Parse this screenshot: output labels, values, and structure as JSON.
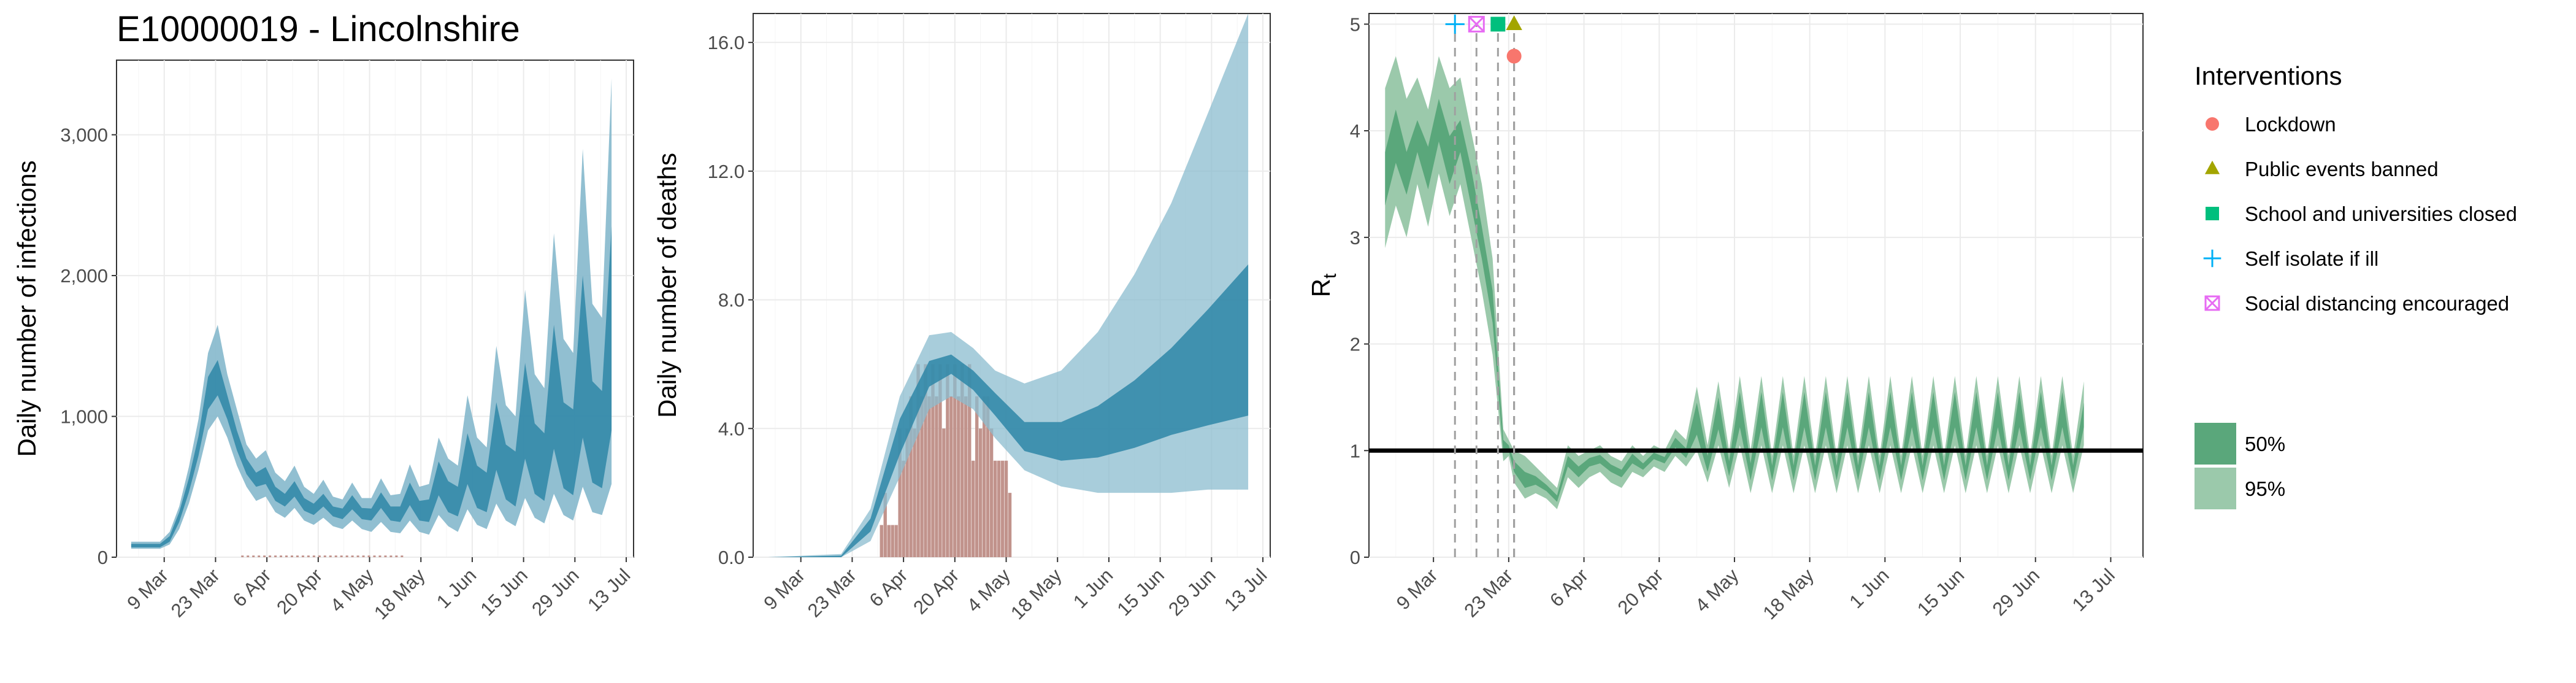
{
  "title": "E10000019 - Lincolnshire",
  "colors": {
    "band_blue_95": "#8bbccf",
    "band_blue_50": "#2e86a7",
    "bar": "#c1938c",
    "green_95": "#9bc9ab",
    "green_50": "#5aa77b",
    "lockdown": "#f8766d",
    "public_events": "#a3a500",
    "schools": "#00bf7d",
    "self_isolate": "#00b0f6",
    "social_distancing": "#e76bf3"
  },
  "chart_data": [
    {
      "type": "area",
      "panel": "infections",
      "ylabel": "Daily number of infections",
      "xlabel": "",
      "x_ticks": [
        "9 Mar",
        "23 Mar",
        "6 Apr",
        "20 Apr",
        "4 May",
        "18 May",
        "1 Jun",
        "15 Jun",
        "29 Jun",
        "13 Jul"
      ],
      "y_ticks": [
        "0",
        "1,000",
        "2,000",
        "3,000"
      ],
      "ylim": [
        0,
        3500
      ],
      "x_start": "2020-02-29",
      "bands_95": [
        [
          60,
          110
        ],
        [
          60,
          110
        ],
        [
          60,
          110
        ],
        [
          60,
          110
        ],
        [
          90,
          180
        ],
        [
          200,
          360
        ],
        [
          380,
          640
        ],
        [
          620,
          980
        ],
        [
          900,
          1450
        ],
        [
          1000,
          1650
        ],
        [
          850,
          1300
        ],
        [
          650,
          1050
        ],
        [
          500,
          800
        ],
        [
          400,
          700
        ],
        [
          430,
          760
        ],
        [
          320,
          600
        ],
        [
          280,
          540
        ],
        [
          350,
          650
        ],
        [
          260,
          500
        ],
        [
          230,
          450
        ],
        [
          280,
          550
        ],
        [
          220,
          430
        ],
        [
          200,
          410
        ],
        [
          260,
          530
        ],
        [
          200,
          420
        ],
        [
          180,
          420
        ],
        [
          250,
          560
        ],
        [
          180,
          440
        ],
        [
          170,
          450
        ],
        [
          260,
          660
        ],
        [
          180,
          500
        ],
        [
          160,
          520
        ],
        [
          300,
          850
        ],
        [
          220,
          700
        ],
        [
          180,
          650
        ],
        [
          340,
          1150
        ],
        [
          230,
          850
        ],
        [
          200,
          780
        ],
        [
          380,
          1500
        ],
        [
          260,
          1080
        ],
        [
          220,
          1000
        ],
        [
          420,
          1900
        ],
        [
          280,
          1300
        ],
        [
          240,
          1200
        ],
        [
          450,
          2300
        ],
        [
          300,
          1550
        ],
        [
          260,
          1450
        ],
        [
          500,
          2900
        ],
        [
          320,
          1800
        ],
        [
          300,
          1700
        ],
        [
          520,
          3400
        ]
      ],
      "bands_50": [
        [
          70,
          95
        ],
        [
          70,
          95
        ],
        [
          70,
          95
        ],
        [
          70,
          95
        ],
        [
          110,
          150
        ],
        [
          250,
          320
        ],
        [
          460,
          560
        ],
        [
          720,
          860
        ],
        [
          1050,
          1280
        ],
        [
          1150,
          1400
        ],
        [
          980,
          1150
        ],
        [
          760,
          900
        ],
        [
          590,
          700
        ],
        [
          500,
          600
        ],
        [
          520,
          640
        ],
        [
          400,
          500
        ],
        [
          360,
          450
        ],
        [
          430,
          540
        ],
        [
          330,
          420
        ],
        [
          300,
          380
        ],
        [
          360,
          450
        ],
        [
          290,
          360
        ],
        [
          270,
          345
        ],
        [
          340,
          440
        ],
        [
          270,
          350
        ],
        [
          260,
          345
        ],
        [
          350,
          460
        ],
        [
          260,
          360
        ],
        [
          250,
          360
        ],
        [
          370,
          530
        ],
        [
          260,
          400
        ],
        [
          250,
          410
        ],
        [
          440,
          680
        ],
        [
          320,
          540
        ],
        [
          290,
          500
        ],
        [
          520,
          880
        ],
        [
          350,
          650
        ],
        [
          320,
          600
        ],
        [
          620,
          1100
        ],
        [
          410,
          800
        ],
        [
          360,
          750
        ],
        [
          700,
          1380
        ],
        [
          450,
          950
        ],
        [
          400,
          880
        ],
        [
          770,
          1650
        ],
        [
          490,
          1100
        ],
        [
          440,
          1050
        ],
        [
          850,
          2000
        ],
        [
          530,
          1250
        ],
        [
          490,
          1180
        ],
        [
          900,
          2350
        ]
      ],
      "observed": "small bars near zero (late Mar – mid May)"
    },
    {
      "type": "area",
      "panel": "deaths",
      "ylabel": "Daily number of deaths",
      "xlabel": "",
      "x_ticks": [
        "9 Mar",
        "23 Mar",
        "6 Apr",
        "20 Apr",
        "4 May",
        "18 May",
        "1 Jun",
        "15 Jun",
        "29 Jun",
        "13 Jul"
      ],
      "y_ticks": [
        "0.0",
        "4.0",
        "8.0",
        "12.0",
        "16.0"
      ],
      "ylim": [
        0,
        17
      ],
      "x_start": "2020-02-29",
      "deaths_observed": [
        {
          "date_offset": 31,
          "value": 1
        },
        {
          "date_offset": 32,
          "value": 2
        },
        {
          "date_offset": 33,
          "value": 1
        },
        {
          "date_offset": 34,
          "value": 1
        },
        {
          "date_offset": 35,
          "value": 1
        },
        {
          "date_offset": 36,
          "value": 4
        },
        {
          "date_offset": 37,
          "value": 3
        },
        {
          "date_offset": 38,
          "value": 4
        },
        {
          "date_offset": 39,
          "value": 5
        },
        {
          "date_offset": 40,
          "value": 4
        },
        {
          "date_offset": 41,
          "value": 6
        },
        {
          "date_offset": 42,
          "value": 5
        },
        {
          "date_offset": 43,
          "value": 6
        },
        {
          "date_offset": 44,
          "value": 5
        },
        {
          "date_offset": 45,
          "value": 6
        },
        {
          "date_offset": 46,
          "value": 5
        },
        {
          "date_offset": 47,
          "value": 6
        },
        {
          "date_offset": 48,
          "value": 4
        },
        {
          "date_offset": 49,
          "value": 6
        },
        {
          "date_offset": 50,
          "value": 5
        },
        {
          "date_offset": 51,
          "value": 6
        },
        {
          "date_offset": 52,
          "value": 5
        },
        {
          "date_offset": 53,
          "value": 6
        },
        {
          "date_offset": 54,
          "value": 5
        },
        {
          "date_offset": 55,
          "value": 6
        },
        {
          "date_offset": 56,
          "value": 3
        },
        {
          "date_offset": 57,
          "value": 5
        },
        {
          "date_offset": 58,
          "value": 4
        },
        {
          "date_offset": 59,
          "value": 5
        },
        {
          "date_offset": 60,
          "value": 5
        },
        {
          "date_offset": 61,
          "value": 4
        },
        {
          "date_offset": 62,
          "value": 3
        },
        {
          "date_offset": 63,
          "value": 3
        },
        {
          "date_offset": 64,
          "value": 3
        },
        {
          "date_offset": 65,
          "value": 3
        },
        {
          "date_offset": 66,
          "value": 2
        }
      ],
      "band_95": {
        "x": [
          0,
          20,
          28,
          36,
          44,
          50,
          56,
          62,
          70,
          80,
          90,
          100,
          110,
          120,
          131
        ],
        "lo": [
          0,
          0,
          0.5,
          2.5,
          4.6,
          5.0,
          4.6,
          3.7,
          2.7,
          2.2,
          2.0,
          2.0,
          2.0,
          2.1,
          2.1
        ],
        "hi": [
          0,
          0.1,
          1.5,
          5.0,
          6.9,
          7.0,
          6.5,
          5.8,
          5.4,
          5.8,
          7.0,
          8.8,
          11.0,
          13.8,
          16.9
        ]
      },
      "band_50": {
        "x": [
          0,
          20,
          28,
          36,
          44,
          50,
          56,
          62,
          70,
          80,
          90,
          100,
          110,
          120,
          131
        ],
        "lo": [
          0,
          0,
          0.8,
          3.2,
          5.3,
          5.7,
          5.2,
          4.4,
          3.3,
          3.0,
          3.1,
          3.4,
          3.8,
          4.1,
          4.4
        ],
        "hi": [
          0,
          0.05,
          1.2,
          4.3,
          6.1,
          6.3,
          5.8,
          5.1,
          4.2,
          4.2,
          4.7,
          5.5,
          6.5,
          7.7,
          9.1
        ]
      }
    },
    {
      "type": "area",
      "panel": "rt",
      "ylabel": "R",
      "ylabel_sub": "t",
      "xlabel": "",
      "x_ticks": [
        "9 Mar",
        "23 Mar",
        "6 Apr",
        "20 Apr",
        "4 May",
        "18 May",
        "1 Jun",
        "15 Jun",
        "29 Jun",
        "13 Jul"
      ],
      "y_ticks": [
        "0",
        "1",
        "2",
        "3",
        "4",
        "5"
      ],
      "ylim": [
        0,
        5
      ],
      "reference_line": 1,
      "x_start": "2020-02-29",
      "band_95": {
        "x": [
          0,
          2,
          4,
          6,
          8,
          10,
          12,
          14,
          16,
          18,
          20,
          22,
          23,
          24,
          26,
          28,
          30,
          32,
          34,
          36,
          38,
          40,
          42,
          44,
          46,
          48,
          50,
          52,
          54,
          56,
          58,
          60,
          62,
          64,
          66,
          68,
          70,
          72,
          74,
          76,
          78,
          80,
          82,
          84,
          86,
          88,
          90,
          92,
          94,
          96,
          98,
          100,
          102,
          104,
          106,
          108,
          110,
          112,
          114,
          116,
          118,
          120,
          122,
          124,
          126,
          128,
          130
        ],
        "lo": [
          2.9,
          3.3,
          3.0,
          3.5,
          3.1,
          3.6,
          3.2,
          3.5,
          3.0,
          2.5,
          1.9,
          0.9,
          0.95,
          0.7,
          0.55,
          0.6,
          0.55,
          0.45,
          0.75,
          0.65,
          0.75,
          0.8,
          0.7,
          0.65,
          0.8,
          0.75,
          0.85,
          0.8,
          0.95,
          0.85,
          1.0,
          0.7,
          1.05,
          0.65,
          1.05,
          0.6,
          1.05,
          0.6,
          1.05,
          0.6,
          1.05,
          0.6,
          1.05,
          0.6,
          1.05,
          0.6,
          1.05,
          0.6,
          1.05,
          0.6,
          1.05,
          0.6,
          1.05,
          0.6,
          1.05,
          0.6,
          1.05,
          0.6,
          1.05,
          0.6,
          1.05,
          0.6,
          1.05,
          0.6,
          1.05,
          0.6,
          1.05
        ],
        "hi": [
          4.4,
          4.7,
          4.3,
          4.5,
          4.2,
          4.7,
          4.4,
          4.5,
          4.0,
          3.5,
          2.8,
          1.2,
          1.1,
          1.0,
          0.95,
          0.85,
          0.75,
          0.65,
          1.05,
          0.95,
          1.0,
          1.05,
          0.95,
          0.9,
          1.05,
          0.95,
          1.05,
          1.0,
          1.2,
          1.1,
          1.6,
          1.05,
          1.65,
          1.0,
          1.7,
          1.0,
          1.7,
          0.95,
          1.7,
          0.95,
          1.7,
          0.95,
          1.7,
          0.95,
          1.7,
          0.95,
          1.7,
          0.95,
          1.7,
          0.95,
          1.7,
          0.95,
          1.7,
          0.95,
          1.7,
          0.95,
          1.7,
          0.95,
          1.7,
          0.95,
          1.7,
          0.95,
          1.7,
          0.95,
          1.7,
          0.95,
          1.65
        ]
      },
      "band_50": {
        "x": [
          0,
          2,
          4,
          6,
          8,
          10,
          12,
          14,
          16,
          18,
          20,
          22,
          23,
          24,
          26,
          28,
          30,
          32,
          34,
          36,
          38,
          40,
          42,
          44,
          46,
          48,
          50,
          52,
          54,
          56,
          58,
          60,
          62,
          64,
          66,
          68,
          70,
          72,
          74,
          76,
          78,
          80,
          82,
          84,
          86,
          88,
          90,
          92,
          94,
          96,
          98,
          100,
          102,
          104,
          106,
          108,
          110,
          112,
          114,
          116,
          118,
          120,
          122,
          124,
          126,
          128,
          130
        ],
        "lo": [
          3.3,
          3.7,
          3.4,
          3.8,
          3.45,
          3.9,
          3.5,
          3.8,
          3.3,
          2.8,
          2.2,
          0.98,
          1.0,
          0.8,
          0.65,
          0.68,
          0.62,
          0.52,
          0.85,
          0.75,
          0.85,
          0.88,
          0.8,
          0.75,
          0.88,
          0.82,
          0.92,
          0.88,
          1.03,
          0.93,
          1.15,
          0.8,
          1.2,
          0.76,
          1.22,
          0.72,
          1.22,
          0.72,
          1.22,
          0.72,
          1.22,
          0.72,
          1.22,
          0.72,
          1.22,
          0.72,
          1.22,
          0.72,
          1.22,
          0.72,
          1.22,
          0.72,
          1.22,
          0.72,
          1.22,
          0.72,
          1.22,
          0.72,
          1.22,
          0.72,
          1.22,
          0.72,
          1.22,
          0.72,
          1.22,
          0.72,
          1.22
        ],
        "hi": [
          3.8,
          4.2,
          3.8,
          4.1,
          3.85,
          4.3,
          3.95,
          4.1,
          3.65,
          3.1,
          2.5,
          1.1,
          1.05,
          0.9,
          0.8,
          0.76,
          0.68,
          0.58,
          0.95,
          0.85,
          0.93,
          0.96,
          0.87,
          0.82,
          0.97,
          0.88,
          0.98,
          0.94,
          1.12,
          1.02,
          1.45,
          0.95,
          1.5,
          0.9,
          1.55,
          0.88,
          1.55,
          0.86,
          1.55,
          0.86,
          1.55,
          0.86,
          1.55,
          0.86,
          1.55,
          0.86,
          1.55,
          0.86,
          1.55,
          0.86,
          1.55,
          0.86,
          1.55,
          0.86,
          1.55,
          0.86,
          1.55,
          0.86,
          1.55,
          0.86,
          1.55,
          0.86,
          1.55,
          0.86,
          1.55,
          0.86,
          1.45
        ]
      },
      "interventions": [
        {
          "name": "Self isolate if ill",
          "date_offset": 13,
          "marker": "plus",
          "level": 5.0
        },
        {
          "name": "Social distancing encouraged",
          "date_offset": 17,
          "marker": "boxx",
          "level": 5.0
        },
        {
          "name": "School and universities closed",
          "date_offset": 21,
          "marker": "square",
          "level": 5.0
        },
        {
          "name": "Public events banned",
          "date_offset": 24,
          "marker": "triangle",
          "level": 5.0
        },
        {
          "name": "Lockdown",
          "date_offset": 24,
          "marker": "circle",
          "level": 4.7
        }
      ]
    }
  ],
  "legend": {
    "interventions_title": "Interventions",
    "items": [
      {
        "label": "Lockdown",
        "marker": "circle"
      },
      {
        "label": "Public events banned",
        "marker": "triangle"
      },
      {
        "label": "School and universities closed",
        "marker": "square"
      },
      {
        "label": "Self isolate if ill",
        "marker": "plus"
      },
      {
        "label": "Social distancing encouraged",
        "marker": "boxx"
      }
    ],
    "ci_items": [
      {
        "label": "50%"
      },
      {
        "label": "95%"
      }
    ]
  }
}
